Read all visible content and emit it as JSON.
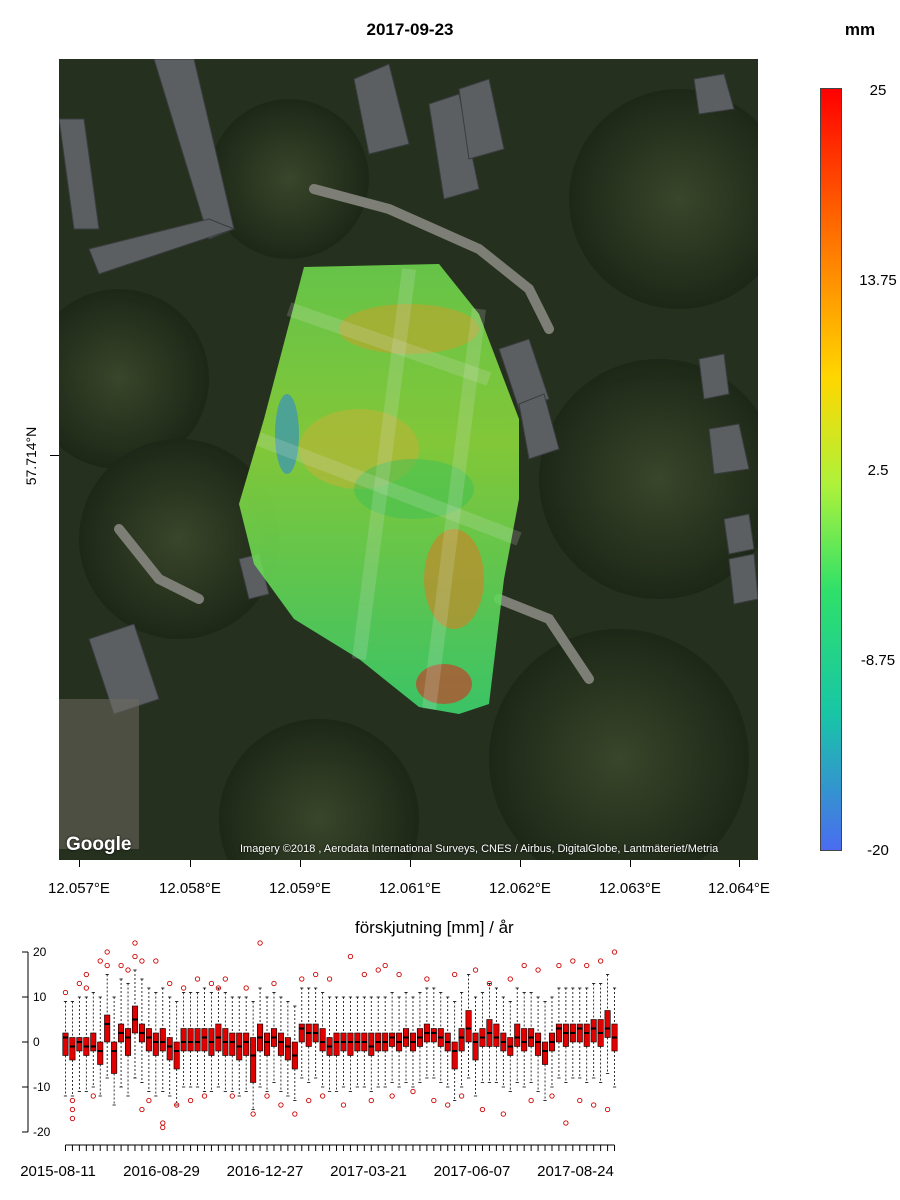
{
  "map": {
    "title": "2017-09-23",
    "unit": "mm",
    "lat_label": "57.714°N",
    "lon_ticks": [
      "12.057°E",
      "12.058°E",
      "12.059°E",
      "12.061°E",
      "12.062°E",
      "12.063°E",
      "12.064°E"
    ],
    "google_logo": "Google",
    "imagery_credit": "Imagery ©2018 , Aerodata International Surveys, CNES / Airbus, DigitalGlobe, Lantmäteriet/Metria",
    "colorbar_ticks": [
      "25",
      "13.75",
      "2.5",
      "-8.75",
      "-20"
    ],
    "colorbar_colors": [
      "#ff0000",
      "#ff6a00",
      "#ffd700",
      "#aef23a",
      "#2fe06a",
      "#18c6a6",
      "#4a6cf0"
    ]
  },
  "chart_data": {
    "type": "box",
    "title": "förskjutning [mm] / år",
    "xlabel": "",
    "ylabel": "",
    "ylim": [
      -20,
      20
    ],
    "yticks": [
      20,
      10,
      0,
      -10,
      -20
    ],
    "x_tick_labels": [
      "2015-08-11",
      "2016-08-29",
      "2016-12-27",
      "2017-03-21",
      "2017-06-07",
      "2017-08-24"
    ],
    "box_color": "#e00000",
    "outlier_color": "#cc0000",
    "boxes": [
      {
        "q1": -3,
        "median": 1,
        "q3": 2,
        "whisker_low": -12,
        "whisker_high": 9
      },
      {
        "q1": -4,
        "median": -1,
        "q3": 1,
        "whisker_low": -12,
        "whisker_high": 9
      },
      {
        "q1": -2,
        "median": 0,
        "q3": 1,
        "whisker_low": -11,
        "whisker_high": 10
      },
      {
        "q1": -3,
        "median": -1,
        "q3": 1,
        "whisker_low": -11,
        "whisker_high": 10
      },
      {
        "q1": -2,
        "median": -1,
        "q3": 2,
        "whisker_low": -10,
        "whisker_high": 11
      },
      {
        "q1": -5,
        "median": -2,
        "q3": 0,
        "whisker_low": -12,
        "whisker_high": 10
      },
      {
        "q1": 0,
        "median": 4,
        "q3": 6,
        "whisker_low": -8,
        "whisker_high": 15
      },
      {
        "q1": -7,
        "median": -2,
        "q3": 0,
        "whisker_low": -14,
        "whisker_high": 10
      },
      {
        "q1": 0,
        "median": 2,
        "q3": 4,
        "whisker_low": -10,
        "whisker_high": 14
      },
      {
        "q1": -3,
        "median": 1,
        "q3": 3,
        "whisker_low": -12,
        "whisker_high": 13
      },
      {
        "q1": 2,
        "median": 5,
        "q3": 8,
        "whisker_low": -8,
        "whisker_high": 16
      },
      {
        "q1": 0,
        "median": 2,
        "q3": 4,
        "whisker_low": -9,
        "whisker_high": 14
      },
      {
        "q1": -2,
        "median": 1,
        "q3": 3,
        "whisker_low": -11,
        "whisker_high": 12
      },
      {
        "q1": -3,
        "median": 0,
        "q3": 2,
        "whisker_low": -12,
        "whisker_high": 11
      },
      {
        "q1": -2,
        "median": 0,
        "q3": 3,
        "whisker_low": -11,
        "whisker_high": 12
      },
      {
        "q1": -4,
        "median": -1,
        "q3": 1,
        "whisker_low": -12,
        "whisker_high": 10
      },
      {
        "q1": -6,
        "median": -2,
        "q3": 0,
        "whisker_low": -14,
        "whisker_high": 9
      },
      {
        "q1": -2,
        "median": 0,
        "q3": 3,
        "whisker_low": -10,
        "whisker_high": 11
      },
      {
        "q1": -2,
        "median": 0,
        "q3": 3,
        "whisker_low": -10,
        "whisker_high": 11
      },
      {
        "q1": -2,
        "median": 0,
        "q3": 3,
        "whisker_low": -10,
        "whisker_high": 11
      },
      {
        "q1": -2,
        "median": 1,
        "q3": 3,
        "whisker_low": -11,
        "whisker_high": 12
      },
      {
        "q1": -3,
        "median": 0,
        "q3": 3,
        "whisker_low": -11,
        "whisker_high": 11
      },
      {
        "q1": -2,
        "median": 1,
        "q3": 4,
        "whisker_low": -10,
        "whisker_high": 12
      },
      {
        "q1": -3,
        "median": 0,
        "q3": 3,
        "whisker_low": -11,
        "whisker_high": 11
      },
      {
        "q1": -3,
        "median": 0,
        "q3": 2,
        "whisker_low": -11,
        "whisker_high": 10
      },
      {
        "q1": -4,
        "median": -1,
        "q3": 2,
        "whisker_low": -12,
        "whisker_high": 10
      },
      {
        "q1": -3,
        "median": 0,
        "q3": 2,
        "whisker_low": -11,
        "whisker_high": 10
      },
      {
        "q1": -9,
        "median": -3,
        "q3": 1,
        "whisker_low": -15,
        "whisker_high": 9
      },
      {
        "q1": -2,
        "median": 1,
        "q3": 4,
        "whisker_low": -10,
        "whisker_high": 12
      },
      {
        "q1": -3,
        "median": 0,
        "q3": 2,
        "whisker_low": -11,
        "whisker_high": 10
      },
      {
        "q1": -1,
        "median": 1,
        "q3": 3,
        "whisker_low": -9,
        "whisker_high": 11
      },
      {
        "q1": -3,
        "median": 0,
        "q3": 2,
        "whisker_low": -11,
        "whisker_high": 10
      },
      {
        "q1": -4,
        "median": -1,
        "q3": 1,
        "whisker_low": -12,
        "whisker_high": 9
      },
      {
        "q1": -6,
        "median": -3,
        "q3": 0,
        "whisker_low": -13,
        "whisker_high": 8
      },
      {
        "q1": 0,
        "median": 3,
        "q3": 4,
        "whisker_low": -8,
        "whisker_high": 12
      },
      {
        "q1": -1,
        "median": 2,
        "q3": 4,
        "whisker_low": -9,
        "whisker_high": 12
      },
      {
        "q1": 0,
        "median": 2,
        "q3": 4,
        "whisker_low": -8,
        "whisker_high": 12
      },
      {
        "q1": -2,
        "median": 0,
        "q3": 3,
        "whisker_low": -10,
        "whisker_high": 11
      },
      {
        "q1": -3,
        "median": -1,
        "q3": 1,
        "whisker_low": -11,
        "whisker_high": 10
      },
      {
        "q1": -3,
        "median": 0,
        "q3": 2,
        "whisker_low": -11,
        "whisker_high": 10
      },
      {
        "q1": -2,
        "median": 0,
        "q3": 2,
        "whisker_low": -10,
        "whisker_high": 10
      },
      {
        "q1": -3,
        "median": 0,
        "q3": 2,
        "whisker_low": -11,
        "whisker_high": 10
      },
      {
        "q1": -2,
        "median": 0,
        "q3": 2,
        "whisker_low": -10,
        "whisker_high": 10
      },
      {
        "q1": -2,
        "median": 0,
        "q3": 2,
        "whisker_low": -10,
        "whisker_high": 10
      },
      {
        "q1": -3,
        "median": -1,
        "q3": 2,
        "whisker_low": -11,
        "whisker_high": 10
      },
      {
        "q1": -2,
        "median": 0,
        "q3": 2,
        "whisker_low": -10,
        "whisker_high": 10
      },
      {
        "q1": -2,
        "median": 0,
        "q3": 2,
        "whisker_low": -10,
        "whisker_high": 10
      },
      {
        "q1": -1,
        "median": 1,
        "q3": 2,
        "whisker_low": -9,
        "whisker_high": 11
      },
      {
        "q1": -2,
        "median": 0,
        "q3": 2,
        "whisker_low": -10,
        "whisker_high": 10
      },
      {
        "q1": -1,
        "median": 1,
        "q3": 3,
        "whisker_low": -9,
        "whisker_high": 11
      },
      {
        "q1": -2,
        "median": 0,
        "q3": 2,
        "whisker_low": -10,
        "whisker_high": 10
      },
      {
        "q1": -1,
        "median": 1,
        "q3": 3,
        "whisker_low": -9,
        "whisker_high": 11
      },
      {
        "q1": 0,
        "median": 2,
        "q3": 4,
        "whisker_low": -8,
        "whisker_high": 12
      },
      {
        "q1": 0,
        "median": 2,
        "q3": 3,
        "whisker_low": -8,
        "whisker_high": 12
      },
      {
        "q1": -1,
        "median": 1,
        "q3": 3,
        "whisker_low": -9,
        "whisker_high": 11
      },
      {
        "q1": -2,
        "median": 0,
        "q3": 2,
        "whisker_low": -10,
        "whisker_high": 10
      },
      {
        "q1": -6,
        "median": -2,
        "q3": 0,
        "whisker_low": -13,
        "whisker_high": 9
      },
      {
        "q1": -2,
        "median": 1,
        "q3": 3,
        "whisker_low": -10,
        "whisker_high": 11
      },
      {
        "q1": 0,
        "median": 3,
        "q3": 7,
        "whisker_low": -8,
        "whisker_high": 15
      },
      {
        "q1": -4,
        "median": 0,
        "q3": 2,
        "whisker_low": -12,
        "whisker_high": 10
      },
      {
        "q1": -1,
        "median": 1,
        "q3": 3,
        "whisker_low": -9,
        "whisker_high": 11
      },
      {
        "q1": -1,
        "median": 2,
        "q3": 5,
        "whisker_low": -9,
        "whisker_high": 13
      },
      {
        "q1": -1,
        "median": 1,
        "q3": 4,
        "whisker_low": -9,
        "whisker_high": 12
      },
      {
        "q1": -2,
        "median": 0,
        "q3": 2,
        "whisker_low": -10,
        "whisker_high": 10
      },
      {
        "q1": -3,
        "median": -1,
        "q3": 1,
        "whisker_low": -11,
        "whisker_high": 9
      },
      {
        "q1": -1,
        "median": 1,
        "q3": 4,
        "whisker_low": -9,
        "whisker_high": 12
      },
      {
        "q1": -2,
        "median": 0,
        "q3": 3,
        "whisker_low": -10,
        "whisker_high": 11
      },
      {
        "q1": -1,
        "median": 1,
        "q3": 3,
        "whisker_low": -9,
        "whisker_high": 11
      },
      {
        "q1": -3,
        "median": 0,
        "q3": 2,
        "whisker_low": -11,
        "whisker_high": 10
      },
      {
        "q1": -5,
        "median": -2,
        "q3": 0,
        "whisker_low": -13,
        "whisker_high": 9
      },
      {
        "q1": -2,
        "median": 0,
        "q3": 2,
        "whisker_low": -10,
        "whisker_high": 10
      },
      {
        "q1": 0,
        "median": 3,
        "q3": 4,
        "whisker_low": -8,
        "whisker_high": 12
      },
      {
        "q1": -1,
        "median": 2,
        "q3": 4,
        "whisker_low": -9,
        "whisker_high": 12
      },
      {
        "q1": 0,
        "median": 2,
        "q3": 4,
        "whisker_low": -8,
        "whisker_high": 12
      },
      {
        "q1": 0,
        "median": 3,
        "q3": 4,
        "whisker_low": -8,
        "whisker_high": 12
      },
      {
        "q1": -1,
        "median": 2,
        "q3": 4,
        "whisker_low": -9,
        "whisker_high": 12
      },
      {
        "q1": 0,
        "median": 3,
        "q3": 5,
        "whisker_low": -8,
        "whisker_high": 13
      },
      {
        "q1": -1,
        "median": 2,
        "q3": 5,
        "whisker_low": -9,
        "whisker_high": 13
      },
      {
        "q1": 1,
        "median": 3,
        "q3": 7,
        "whisker_low": -7,
        "whisker_high": 15
      },
      {
        "q1": -2,
        "median": 1,
        "q3": 4,
        "whisker_low": -10,
        "whisker_high": 12
      }
    ],
    "outliers": [
      [
        0,
        11
      ],
      [
        1,
        -13
      ],
      [
        1,
        -15
      ],
      [
        1,
        -17
      ],
      [
        2,
        13
      ],
      [
        3,
        15
      ],
      [
        3,
        12
      ],
      [
        4,
        -12
      ],
      [
        5,
        18
      ],
      [
        6,
        20
      ],
      [
        6,
        17
      ],
      [
        8,
        17
      ],
      [
        9,
        16
      ],
      [
        10,
        22
      ],
      [
        10,
        19
      ],
      [
        11,
        18
      ],
      [
        11,
        -15
      ],
      [
        12,
        -13
      ],
      [
        13,
        18
      ],
      [
        14,
        -18
      ],
      [
        14,
        -19
      ],
      [
        15,
        13
      ],
      [
        16,
        -14
      ],
      [
        17,
        12
      ],
      [
        18,
        -13
      ],
      [
        19,
        14
      ],
      [
        20,
        -12
      ],
      [
        21,
        13
      ],
      [
        22,
        12
      ],
      [
        23,
        14
      ],
      [
        24,
        -12
      ],
      [
        26,
        12
      ],
      [
        27,
        -16
      ],
      [
        28,
        22
      ],
      [
        29,
        -12
      ],
      [
        30,
        13
      ],
      [
        31,
        -14
      ],
      [
        33,
        -16
      ],
      [
        34,
        14
      ],
      [
        35,
        -13
      ],
      [
        36,
        15
      ],
      [
        37,
        -12
      ],
      [
        38,
        14
      ],
      [
        40,
        -14
      ],
      [
        41,
        19
      ],
      [
        43,
        15
      ],
      [
        44,
        -13
      ],
      [
        45,
        16
      ],
      [
        46,
        17
      ],
      [
        47,
        -12
      ],
      [
        48,
        15
      ],
      [
        50,
        -11
      ],
      [
        52,
        14
      ],
      [
        53,
        -13
      ],
      [
        55,
        -14
      ],
      [
        56,
        15
      ],
      [
        57,
        -12
      ],
      [
        59,
        16
      ],
      [
        60,
        -15
      ],
      [
        61,
        13
      ],
      [
        63,
        -16
      ],
      [
        64,
        14
      ],
      [
        66,
        17
      ],
      [
        67,
        -13
      ],
      [
        68,
        16
      ],
      [
        70,
        -12
      ],
      [
        71,
        17
      ],
      [
        72,
        -18
      ],
      [
        73,
        18
      ],
      [
        74,
        -13
      ],
      [
        75,
        17
      ],
      [
        76,
        -14
      ],
      [
        77,
        18
      ],
      [
        78,
        -15
      ],
      [
        79,
        20
      ]
    ]
  }
}
